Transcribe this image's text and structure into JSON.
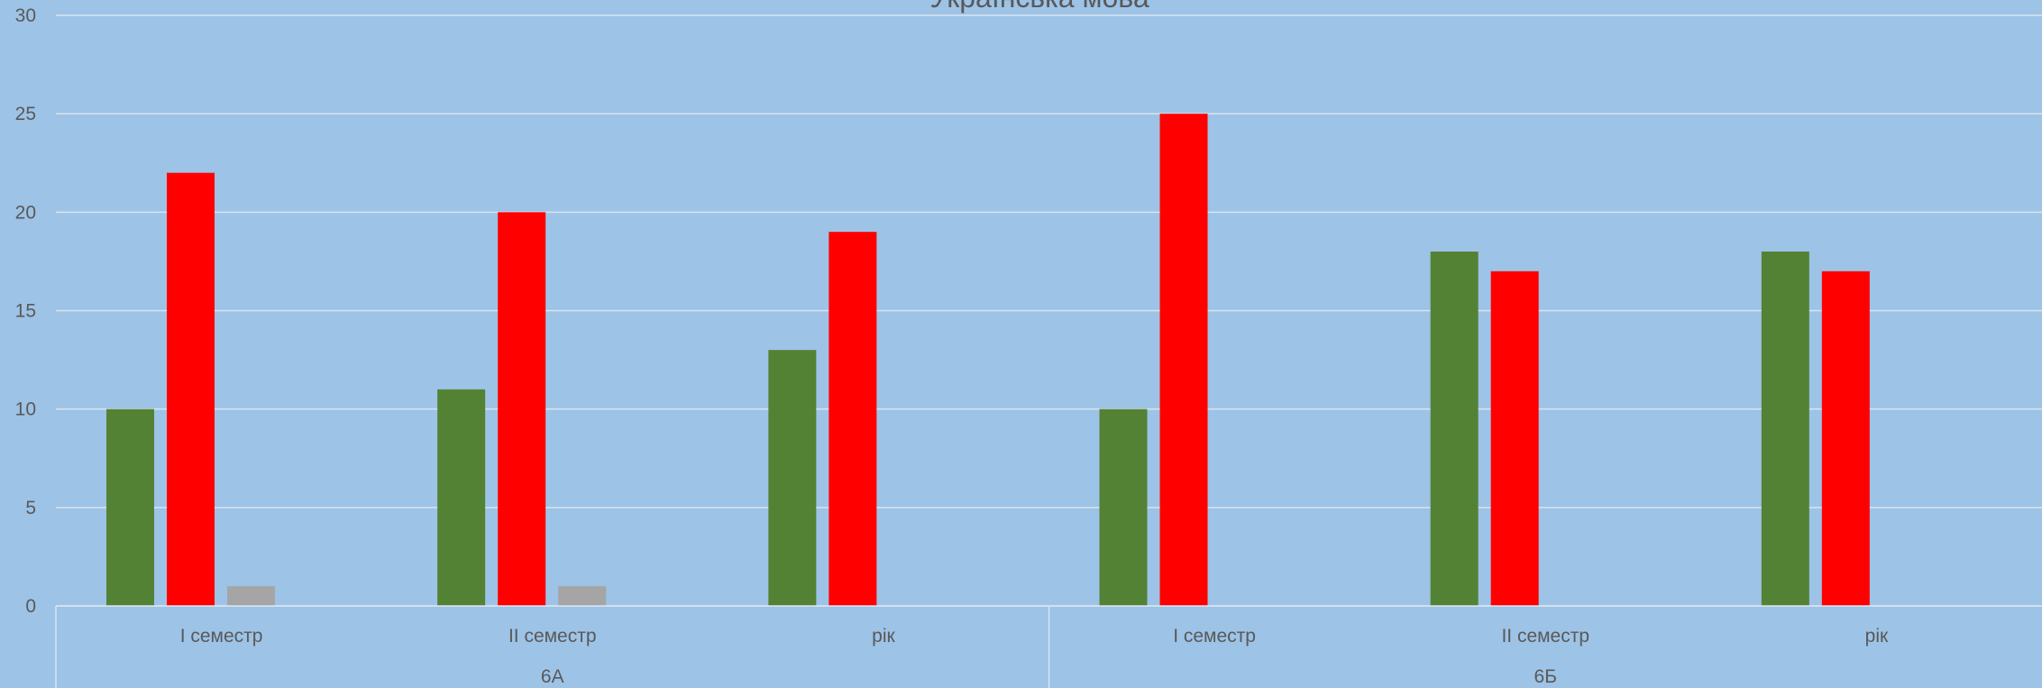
{
  "chart_data": {
    "type": "bar",
    "title": "Українська мова",
    "ylim": [
      0,
      30
    ],
    "yticks": [
      0,
      5,
      10,
      15,
      20,
      25,
      30
    ],
    "grid": true,
    "groups": [
      {
        "label": "6А",
        "categories": [
          "I семестр",
          "II семестр",
          "рік"
        ]
      },
      {
        "label": "6Б",
        "categories": [
          "I семестр",
          "II семестр",
          "рік"
        ]
      }
    ],
    "series": [
      {
        "color": "#548235",
        "values": [
          10,
          11,
          13,
          10,
          18,
          18
        ]
      },
      {
        "color": "#ff0000",
        "values": [
          22,
          20,
          19,
          25,
          17,
          17
        ]
      },
      {
        "color": "#a5a5a5",
        "values": [
          1,
          1,
          0,
          0,
          0,
          0
        ]
      }
    ]
  }
}
